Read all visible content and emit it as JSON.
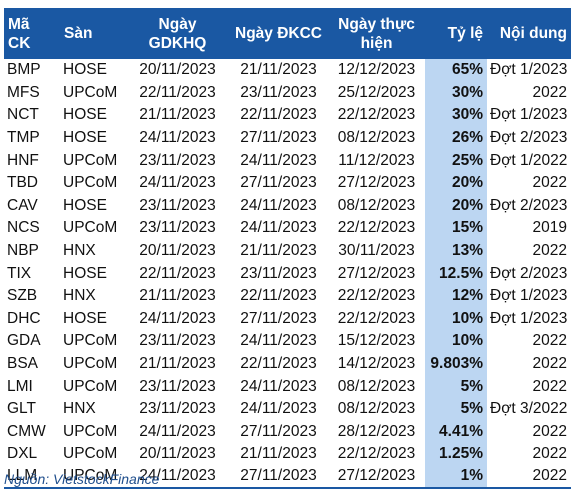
{
  "table": {
    "headers": [
      "Mã CK",
      "Sàn",
      "Ngày GDKHQ",
      "Ngày ĐKCC",
      "Ngày thực hiện",
      "Tỷ lệ",
      "Nội dung"
    ],
    "rows": [
      [
        "BMP",
        "HOSE",
        "20/11/2023",
        "21/11/2023",
        "12/12/2023",
        "65%",
        "Đợt 1/2023"
      ],
      [
        "MFS",
        "UPCoM",
        "22/11/2023",
        "23/11/2023",
        "25/12/2023",
        "30%",
        "2022"
      ],
      [
        "NCT",
        "HOSE",
        "21/11/2023",
        "22/11/2023",
        "22/12/2023",
        "30%",
        "Đợt 1/2023"
      ],
      [
        "TMP",
        "HOSE",
        "24/11/2023",
        "27/11/2023",
        "08/12/2023",
        "26%",
        "Đợt 2/2023"
      ],
      [
        "HNF",
        "UPCoM",
        "23/11/2023",
        "24/11/2023",
        "11/12/2023",
        "25%",
        "Đợt 1/2022"
      ],
      [
        "TBD",
        "UPCoM",
        "24/11/2023",
        "27/11/2023",
        "27/12/2023",
        "20%",
        "2022"
      ],
      [
        "CAV",
        "HOSE",
        "23/11/2023",
        "24/11/2023",
        "08/12/2023",
        "20%",
        "Đợt 2/2023"
      ],
      [
        "NCS",
        "UPCoM",
        "23/11/2023",
        "24/11/2023",
        "22/12/2023",
        "15%",
        "2019"
      ],
      [
        "NBP",
        "HNX",
        "20/11/2023",
        "21/11/2023",
        "30/11/2023",
        "13%",
        "2022"
      ],
      [
        "TIX",
        "HOSE",
        "22/11/2023",
        "23/11/2023",
        "27/12/2023",
        "12.5%",
        "Đợt 2/2023"
      ],
      [
        "SZB",
        "HNX",
        "21/11/2023",
        "22/11/2023",
        "22/12/2023",
        "12%",
        "Đợt 1/2023"
      ],
      [
        "DHC",
        "HOSE",
        "24/11/2023",
        "27/11/2023",
        "22/12/2023",
        "10%",
        "Đợt 1/2023"
      ],
      [
        "GDA",
        "UPCoM",
        "23/11/2023",
        "24/11/2023",
        "15/12/2023",
        "10%",
        "2022"
      ],
      [
        "BSA",
        "UPCoM",
        "21/11/2023",
        "22/11/2023",
        "14/12/2023",
        "9.803%",
        "2022"
      ],
      [
        "LMI",
        "UPCoM",
        "23/11/2023",
        "24/11/2023",
        "08/12/2023",
        "5%",
        "2022"
      ],
      [
        "GLT",
        "HNX",
        "23/11/2023",
        "24/11/2023",
        "08/12/2023",
        "5%",
        "Đợt 3/2022"
      ],
      [
        "CMW",
        "UPCoM",
        "24/11/2023",
        "27/11/2023",
        "28/12/2023",
        "4.41%",
        "2022"
      ],
      [
        "DXL",
        "UPCoM",
        "20/11/2023",
        "21/11/2023",
        "22/12/2023",
        "1.25%",
        "2022"
      ],
      [
        "LLM",
        "UPCoM",
        "24/11/2023",
        "27/11/2023",
        "27/12/2023",
        "1%",
        "2022"
      ]
    ]
  },
  "source": "Nguồn: VietstockFinance",
  "colors": {
    "header_bg": "#1a58a3",
    "header_text": "#ffffff",
    "rate_column_bg": "#bcd6f2",
    "source_text": "#1f4e8c"
  }
}
